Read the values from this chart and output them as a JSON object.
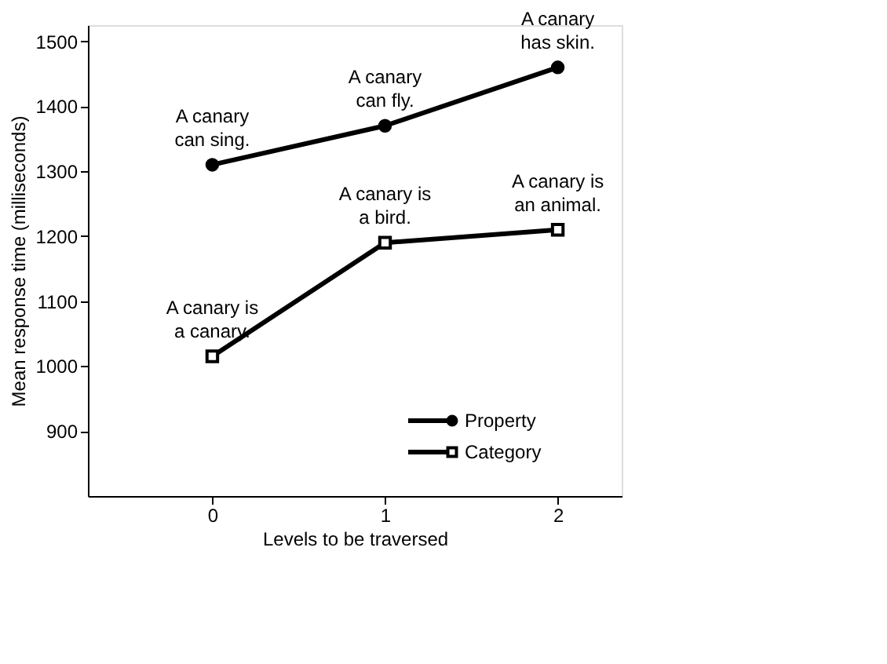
{
  "chart_data": {
    "type": "line",
    "xlabel": "Levels to be traversed",
    "ylabel": "Mean response time (milliseconds)",
    "x": [
      0,
      1,
      2
    ],
    "series": [
      {
        "name": "Property",
        "color": "#000000",
        "marker": "circle",
        "values": [
          1310,
          1370,
          1460
        ]
      },
      {
        "name": "Category",
        "color": "#000000",
        "marker": "square",
        "values": [
          1015,
          1190,
          1210
        ]
      }
    ],
    "xlim": [
      -0.72,
      2.37
    ],
    "xticks": [
      0,
      1,
      2
    ],
    "ylim": [
      800,
      1525
    ],
    "yticks": [
      900,
      1000,
      1100,
      1200,
      1300,
      1400,
      1500
    ],
    "grid": false,
    "legend": "bottom right",
    "line_style": "solid",
    "annotations": [
      {
        "text": "A canary\ncan sing.",
        "x": 0,
        "y": 1310
      },
      {
        "text": "A canary\ncan fly.",
        "x": 1,
        "y": 1370
      },
      {
        "text": "A canary\nhas skin.",
        "x": 2,
        "y": 1460
      },
      {
        "text": "A canary is\na canary.",
        "x": 0,
        "y": 1015
      },
      {
        "text": "A canary is\na bird.",
        "x": 1,
        "y": 1190
      },
      {
        "text": "A canary is\nan animal.",
        "x": 2,
        "y": 1210
      }
    ]
  }
}
